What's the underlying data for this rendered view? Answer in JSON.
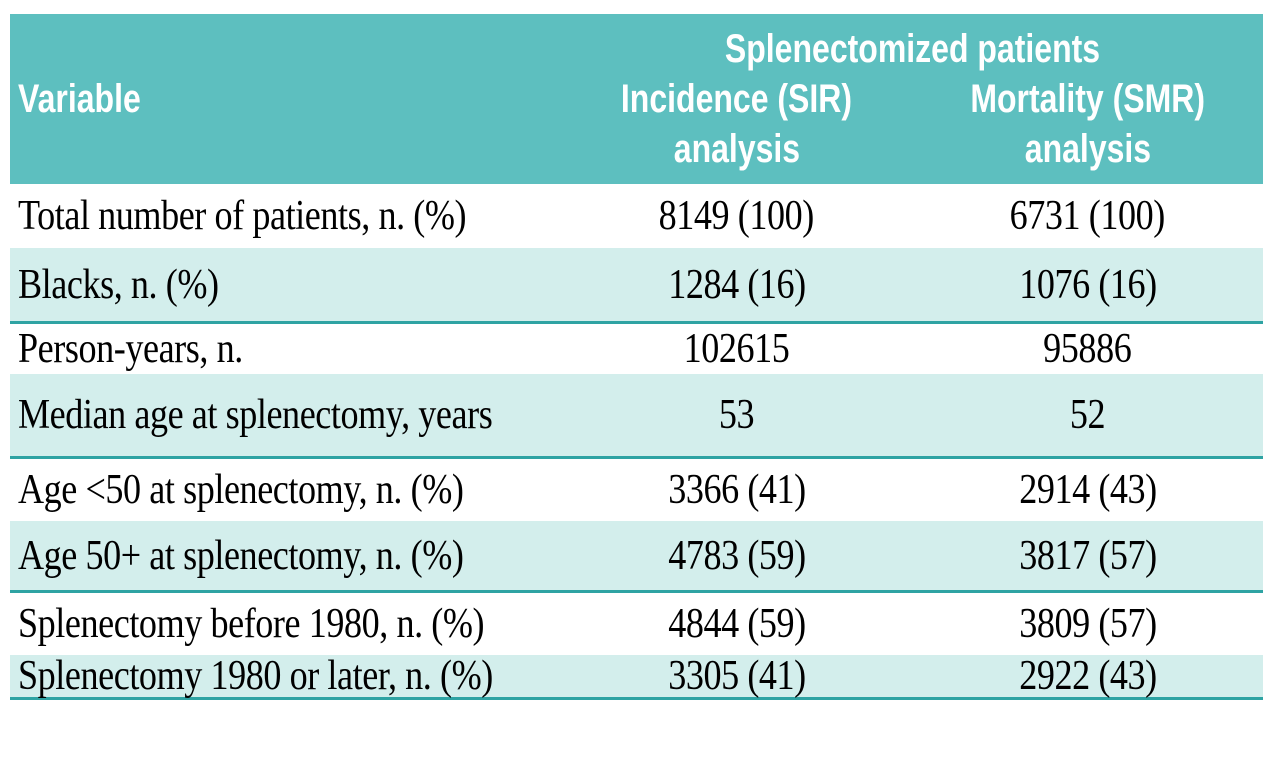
{
  "colors": {
    "header_bg": "#5dbfbf",
    "shaded_row_bg": "#d3eeec",
    "divider": "#2ea3a3",
    "header_text": "#ffffff",
    "body_text": "#000000",
    "page_bg": "#ffffff"
  },
  "header": {
    "variable_label": "Variable",
    "group_label": "Splenectomized patients",
    "sir_line1": "Incidence (SIR)",
    "sir_line2": "analysis",
    "smr_line1": "Mortality (SMR)",
    "smr_line2": "analysis"
  },
  "table": {
    "columns": [
      "Variable",
      "Incidence (SIR) analysis",
      "Mortality (SMR) analysis"
    ],
    "rows": [
      {
        "variable": "Total number of patients, n. (%)",
        "sir": "8149 (100)",
        "smr": "6731 (100)"
      },
      {
        "variable": "Blacks, n. (%)",
        "sir": "1284 (16)",
        "smr": "1076 (16)"
      },
      {
        "variable": "Person-years, n.",
        "sir": "102615",
        "smr": "95886"
      },
      {
        "variable": "Median age at splenectomy, years",
        "sir": "53",
        "smr": "52"
      },
      {
        "variable": "Age <50 at splenectomy, n. (%)",
        "sir": "3366 (41)",
        "smr": "2914 (43)"
      },
      {
        "variable": "Age 50+ at splenectomy, n. (%)",
        "sir": "4783 (59)",
        "smr": "3817 (57)"
      },
      {
        "variable": "Splenectomy before 1980, n. (%)",
        "sir": "4844 (59)",
        "smr": "3809 (57)"
      },
      {
        "variable": "Splenectomy 1980 or later, n. (%)",
        "sir": "3305 (41)",
        "smr": "2922 (43)"
      }
    ]
  }
}
